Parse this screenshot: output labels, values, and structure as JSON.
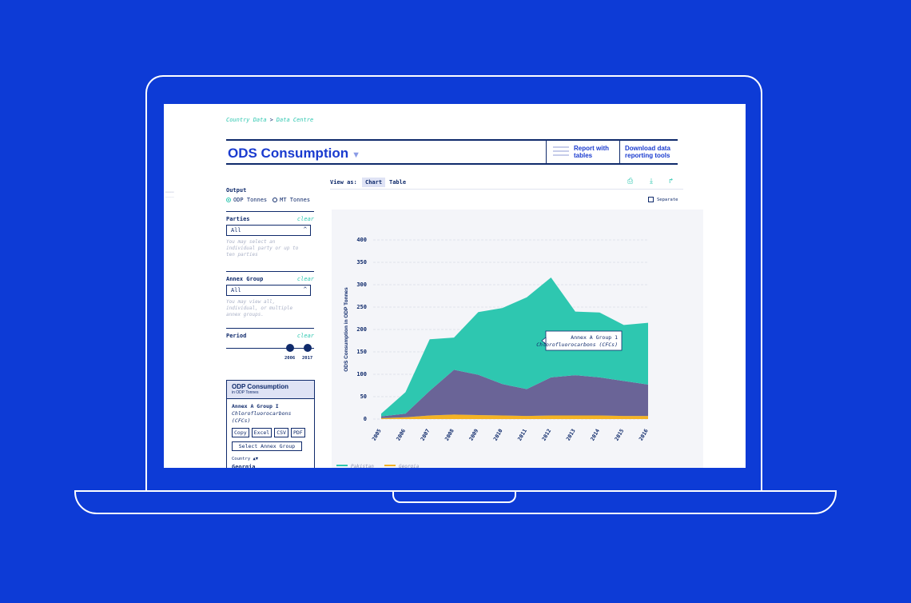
{
  "breadcrumb": {
    "item1": "Country Data",
    "separator": ">",
    "item2": "Data Centre"
  },
  "header": {
    "title": "ODS Consumption",
    "title_caret": "▼",
    "link_reports": [
      "Report with",
      "tables"
    ],
    "link_download": [
      "Download data",
      "reporting tools"
    ]
  },
  "sidebar": {
    "output_label": "Output",
    "output_options": [
      "ODP Tonnes",
      "MT Tonnes"
    ],
    "output_selected": "ODP Tonnes",
    "parties_label": "Parties",
    "parties_clear": "clear",
    "parties_value": "All",
    "parties_hint": "You may select an individual party or up to ten parties",
    "annex_label": "Annex Group",
    "annex_clear": "clear",
    "annex_value": "All",
    "annex_hint": "You may view all, individual, or multiple annex groups.",
    "period_label": "Period",
    "period_clear": "clear",
    "period_start": "2006",
    "period_end": "2017"
  },
  "export_panel": {
    "title": "ODP Consumption",
    "subtitle": "in ODP Tonnes",
    "annex_line1": "Annex A Group I",
    "annex_line2": "Chlorofluorocarbons (CFCs)",
    "buttons": [
      "Copy",
      "Excel",
      "CSV",
      "PDF"
    ],
    "select_button": "Select Annex Group",
    "country_label": "Country ▲▼",
    "country_value": "Georgia"
  },
  "view": {
    "label": "View as:",
    "tabs": [
      "Chart",
      "Table"
    ],
    "active_tab": "Chart",
    "tools": [
      "print-icon",
      "download-icon",
      "share-icon"
    ],
    "separate_label": "Separate"
  },
  "chart_data": {
    "type": "area",
    "title": "",
    "ylabel": "ODS Consumption in ODP Tonnes",
    "xlabel": "",
    "x": [
      "2005",
      "2006",
      "2007",
      "2008",
      "2009",
      "2010",
      "2011",
      "2012",
      "2013",
      "2014",
      "2015",
      "2016"
    ],
    "yticks": [
      0,
      50,
      100,
      150,
      200,
      250,
      300,
      350,
      400
    ],
    "ylim": [
      0,
      400
    ],
    "stacked": true,
    "series": [
      {
        "name": "Georgia",
        "color": "#f4b324",
        "values": [
          2,
          4,
          8,
          10,
          9,
          8,
          7,
          8,
          8,
          8,
          7,
          7
        ]
      },
      {
        "name": "",
        "color": "#6a6497",
        "values": [
          4,
          8,
          55,
          100,
          90,
          70,
          60,
          85,
          90,
          85,
          78,
          70
        ]
      },
      {
        "name": "Pakistan",
        "color": "#2ec7b0",
        "values": [
          6,
          48,
          115,
          72,
          140,
          170,
          205,
          223,
          142,
          145,
          125,
          138
        ]
      }
    ],
    "tooltip": {
      "line1": "Annex A Group 1",
      "line2": "Chlorofluorocarbons (CFCs)"
    },
    "legend": [
      "Pakistan",
      "Georgia"
    ],
    "legend_placement": "bottom"
  }
}
